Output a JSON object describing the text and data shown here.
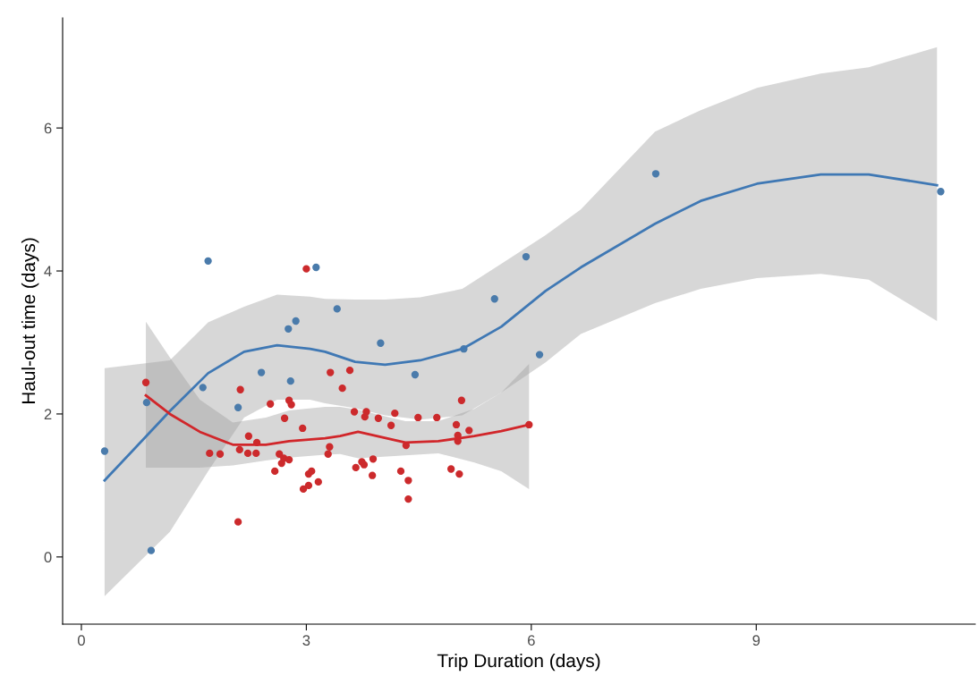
{
  "chart_data": {
    "type": "scatter",
    "xlabel": "Trip Duration (days)",
    "ylabel": "Haul-out time (days)",
    "xlim": [
      -0.25,
      11.92
    ],
    "ylim": [
      -0.94,
      7.54
    ],
    "xticks": [
      0,
      3,
      6,
      9
    ],
    "yticks": [
      0,
      2,
      4,
      6
    ],
    "grid": false,
    "series": [
      {
        "type": "line",
        "color": "#3f78b4",
        "x": [
          0.31,
          1.18,
          1.69,
          2.17,
          2.61,
          3.05,
          3.25,
          3.65,
          4.05,
          4.52,
          5.08,
          5.6,
          6.19,
          6.66,
          7.65,
          8.26,
          9.01,
          9.86,
          10.5,
          11.41
        ],
        "values": [
          1.07,
          2.04,
          2.57,
          2.87,
          2.96,
          2.91,
          2.87,
          2.73,
          2.69,
          2.75,
          2.91,
          3.22,
          3.72,
          4.05,
          4.66,
          4.98,
          5.22,
          5.35,
          5.35,
          5.2
        ],
        "lower": [
          -0.55,
          0.35,
          1.2,
          1.95,
          2.2,
          2.2,
          2.15,
          2.08,
          1.98,
          1.92,
          1.98,
          2.3,
          2.72,
          3.12,
          3.55,
          3.75,
          3.9,
          3.96,
          3.88,
          3.3
        ],
        "upper": [
          2.64,
          2.75,
          3.28,
          3.5,
          3.67,
          3.64,
          3.61,
          3.6,
          3.6,
          3.63,
          3.75,
          4.1,
          4.5,
          4.86,
          5.95,
          6.25,
          6.56,
          6.76,
          6.85,
          7.13
        ]
      },
      {
        "type": "line",
        "color": "#d1262a",
        "x": [
          0.86,
          1.18,
          1.58,
          2.02,
          2.46,
          2.77,
          3.25,
          3.45,
          3.69,
          4.32,
          4.76,
          5.24,
          5.6,
          5.97
        ],
        "values": [
          2.26,
          2.0,
          1.75,
          1.57,
          1.57,
          1.62,
          1.66,
          1.69,
          1.75,
          1.6,
          1.62,
          1.69,
          1.76,
          1.85
        ],
        "lower": [
          1.25,
          1.25,
          1.25,
          1.28,
          1.35,
          1.39,
          1.43,
          1.44,
          1.38,
          1.42,
          1.45,
          1.32,
          1.2,
          0.95
        ],
        "upper": [
          3.29,
          2.79,
          2.2,
          1.88,
          1.95,
          2.05,
          2.1,
          2.1,
          2.06,
          1.9,
          1.9,
          2.07,
          2.3,
          2.7
        ]
      },
      {
        "marker": "circle",
        "color": "#4a7bab",
        "x": [
          0.31,
          0.93,
          0.87,
          1.69,
          1.62,
          2.09,
          2.4,
          2.76,
          2.79,
          2.86,
          3.13,
          3.41,
          3.99,
          4.45,
          5.1,
          5.51,
          5.93,
          6.11,
          7.66,
          11.46
        ],
        "values": [
          1.48,
          0.09,
          2.16,
          4.14,
          2.37,
          2.09,
          2.58,
          3.19,
          2.46,
          3.3,
          4.05,
          3.47,
          2.99,
          2.55,
          2.91,
          3.61,
          4.2,
          2.83,
          5.36,
          5.11
        ]
      },
      {
        "marker": "circle",
        "color": "#cc2a2c",
        "x": [
          0.86,
          1.71,
          1.85,
          2.09,
          2.11,
          2.12,
          2.22,
          2.23,
          2.33,
          2.34,
          2.52,
          2.58,
          2.64,
          2.67,
          2.7,
          2.71,
          2.77,
          2.77,
          2.8,
          2.95,
          2.96,
          3.0,
          3.03,
          3.03,
          3.07,
          3.16,
          3.29,
          3.31,
          3.32,
          3.48,
          3.58,
          3.64,
          3.66,
          3.74,
          3.77,
          3.78,
          3.8,
          3.88,
          3.89,
          3.96,
          4.13,
          4.18,
          4.26,
          4.33,
          4.36,
          4.36,
          4.49,
          4.74,
          4.93,
          5.0,
          5.02,
          5.02,
          5.04,
          5.07,
          5.17,
          5.97
        ],
        "values": [
          2.44,
          1.45,
          1.44,
          0.49,
          1.5,
          2.34,
          1.45,
          1.69,
          1.45,
          1.6,
          2.14,
          1.2,
          1.44,
          1.31,
          1.38,
          1.94,
          2.19,
          1.36,
          2.13,
          1.8,
          0.95,
          4.03,
          1.16,
          1.0,
          1.2,
          1.05,
          1.44,
          1.54,
          2.58,
          2.36,
          2.61,
          2.03,
          1.25,
          1.33,
          1.29,
          1.96,
          2.03,
          1.14,
          1.37,
          1.94,
          1.84,
          2.01,
          1.2,
          1.56,
          1.07,
          0.81,
          1.95,
          1.95,
          1.23,
          1.85,
          1.7,
          1.62,
          1.16,
          2.19,
          1.77,
          1.85
        ]
      }
    ]
  }
}
